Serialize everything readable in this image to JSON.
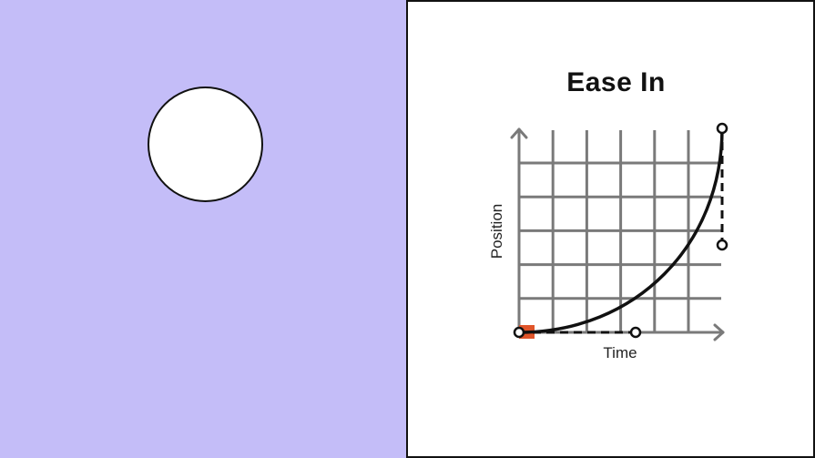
{
  "title": "Ease In",
  "graph": {
    "x_label": "Time",
    "y_label": "Position",
    "curve": "ease-in",
    "colors": {
      "stage": "#c4bdf8",
      "marker": "#e0552a",
      "grid": "#7a7a7a",
      "curve": "#111111"
    }
  }
}
